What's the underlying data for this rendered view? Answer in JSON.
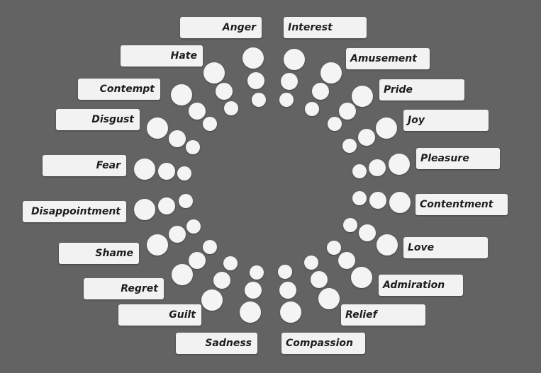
{
  "wheel": {
    "dot_color": "#f4f4f4",
    "label_color": "#f2f2f2",
    "background": "#636363",
    "emotions": [
      {
        "name": "Interest"
      },
      {
        "name": "Amusement"
      },
      {
        "name": "Pride"
      },
      {
        "name": "Joy"
      },
      {
        "name": "Pleasure"
      },
      {
        "name": "Contentment"
      },
      {
        "name": "Love"
      },
      {
        "name": "Admiration"
      },
      {
        "name": "Relief"
      },
      {
        "name": "Compassion"
      },
      {
        "name": "Sadness"
      },
      {
        "name": "Guilt"
      },
      {
        "name": "Regret"
      },
      {
        "name": "Shame"
      },
      {
        "name": "Disappointment"
      },
      {
        "name": "Fear"
      },
      {
        "name": "Disgust"
      },
      {
        "name": "Contempt"
      },
      {
        "name": "Hate"
      },
      {
        "name": "Anger"
      }
    ]
  }
}
